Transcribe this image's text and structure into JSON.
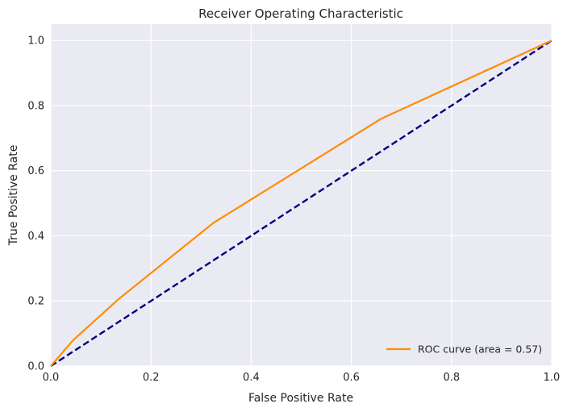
{
  "chart_data": {
    "type": "line",
    "title": "Receiver Operating Characteristic",
    "xlabel": "False Positive Rate",
    "ylabel": "True Positive Rate",
    "xlim": [
      0.0,
      1.0
    ],
    "ylim": [
      0.0,
      1.05
    ],
    "xticks": [
      "0.0",
      "0.2",
      "0.4",
      "0.6",
      "0.8",
      "1.0"
    ],
    "yticks": [
      "0.0",
      "0.2",
      "0.4",
      "0.6",
      "0.8",
      "1.0"
    ],
    "grid": true,
    "legend_position": "bottom-right",
    "series": [
      {
        "name": "ROC curve (area = 0.57)",
        "color": "#ff8c00",
        "style": "solid",
        "x": [
          0.0,
          0.045,
          0.135,
          0.325,
          0.66,
          1.0
        ],
        "y": [
          0.0,
          0.08,
          0.205,
          0.44,
          0.76,
          1.0
        ]
      },
      {
        "name": "",
        "color": "#000080",
        "style": "dashed",
        "x": [
          0.0,
          1.0
        ],
        "y": [
          0.0,
          1.0
        ]
      }
    ]
  }
}
